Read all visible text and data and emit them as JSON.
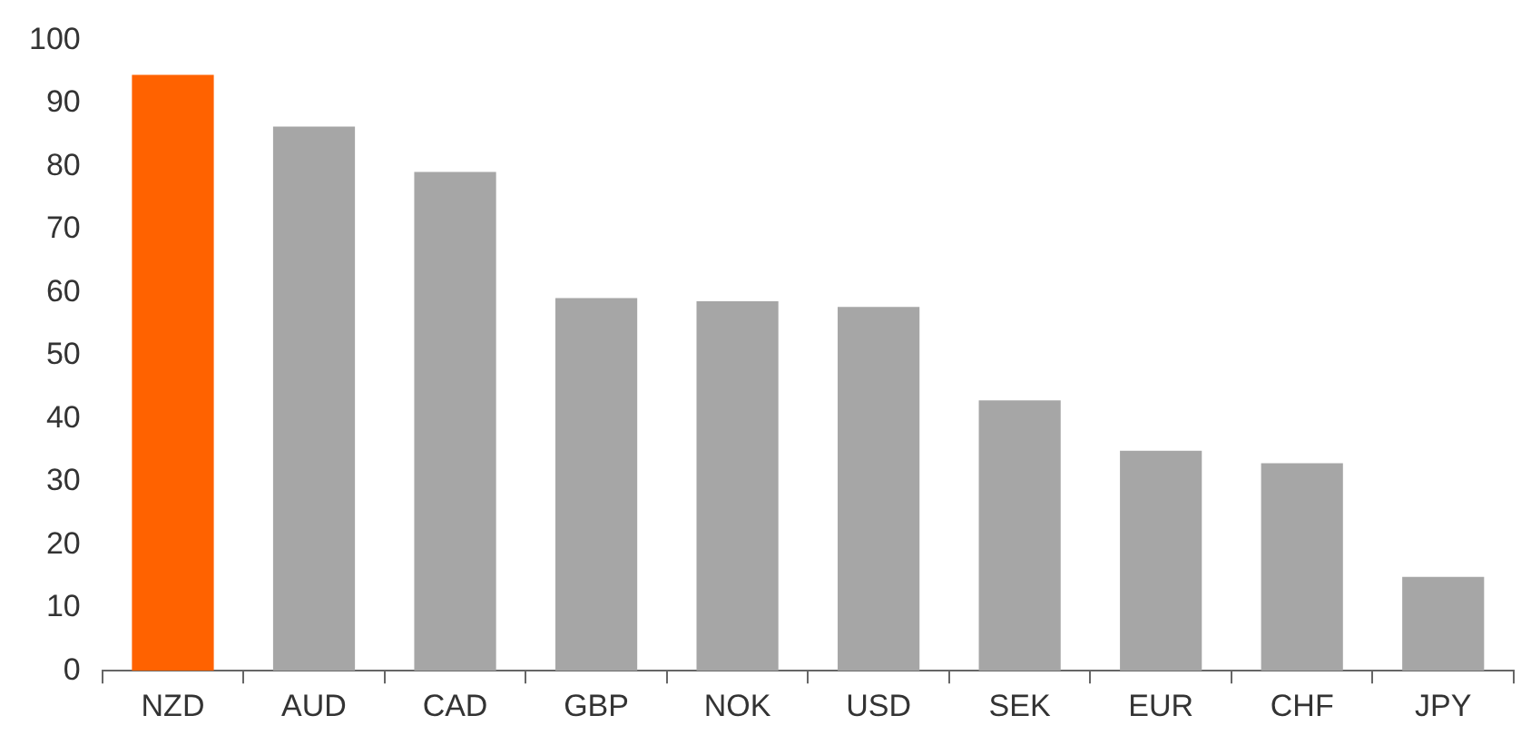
{
  "chart_data": {
    "type": "bar",
    "categories": [
      "NZD",
      "AUD",
      "CAD",
      "GBP",
      "NOK",
      "USD",
      "SEK",
      "EUR",
      "CHF",
      "JPY"
    ],
    "values": [
      94.5,
      86.3,
      79.1,
      59.1,
      58.6,
      57.7,
      42.9,
      34.9,
      32.9,
      14.9
    ],
    "colors": [
      "#ff6200",
      "#a6a6a6",
      "#a6a6a6",
      "#a6a6a6",
      "#a6a6a6",
      "#a6a6a6",
      "#a6a6a6",
      "#a6a6a6",
      "#a6a6a6",
      "#a6a6a6"
    ],
    "ylim": [
      0,
      100
    ],
    "yticks": [
      0,
      10,
      20,
      30,
      40,
      50,
      60,
      70,
      80,
      90,
      100
    ],
    "grid": false,
    "legend": false
  }
}
